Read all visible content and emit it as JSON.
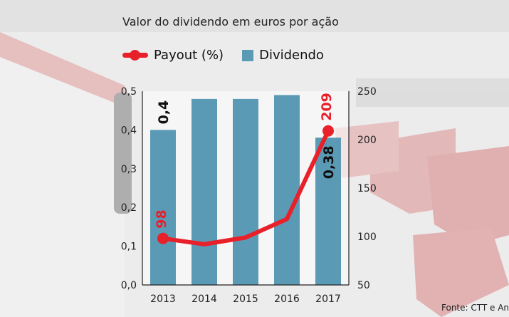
{
  "chart_data": {
    "type": "bar+line",
    "title": "Valor do dividendo em euros por ação",
    "categories": [
      "2013",
      "2014",
      "2015",
      "2016",
      "2017"
    ],
    "series": [
      {
        "name": "Dividendo",
        "type": "bar",
        "axis": "left",
        "color": "#5a9ab5",
        "values": [
          0.4,
          0.48,
          0.48,
          0.49,
          0.38
        ]
      },
      {
        "name": "Payout (%)",
        "type": "line",
        "axis": "right",
        "color": "#e8202a",
        "values": [
          98,
          92,
          99,
          118,
          209
        ]
      }
    ],
    "left_axis": {
      "ylim": [
        0,
        0.5
      ],
      "ticks": [
        "0,0",
        "0,1",
        "0,2",
        "0,3",
        "0,4",
        "0,5"
      ]
    },
    "right_axis": {
      "ylim": [
        50,
        250
      ],
      "ticks": [
        "50",
        "100",
        "150",
        "200",
        "250"
      ]
    },
    "data_labels": [
      {
        "series": "Dividendo",
        "category": "2013",
        "text": "0,4"
      },
      {
        "series": "Dividendo",
        "category": "2017",
        "text": "0,38"
      },
      {
        "series": "Payout (%)",
        "category": "2013",
        "text": "98"
      },
      {
        "series": "Payout (%)",
        "category": "2017",
        "text": "209"
      }
    ],
    "legend": "top-left",
    "grid": false
  },
  "source": "Fonte: CTT e Anacom"
}
